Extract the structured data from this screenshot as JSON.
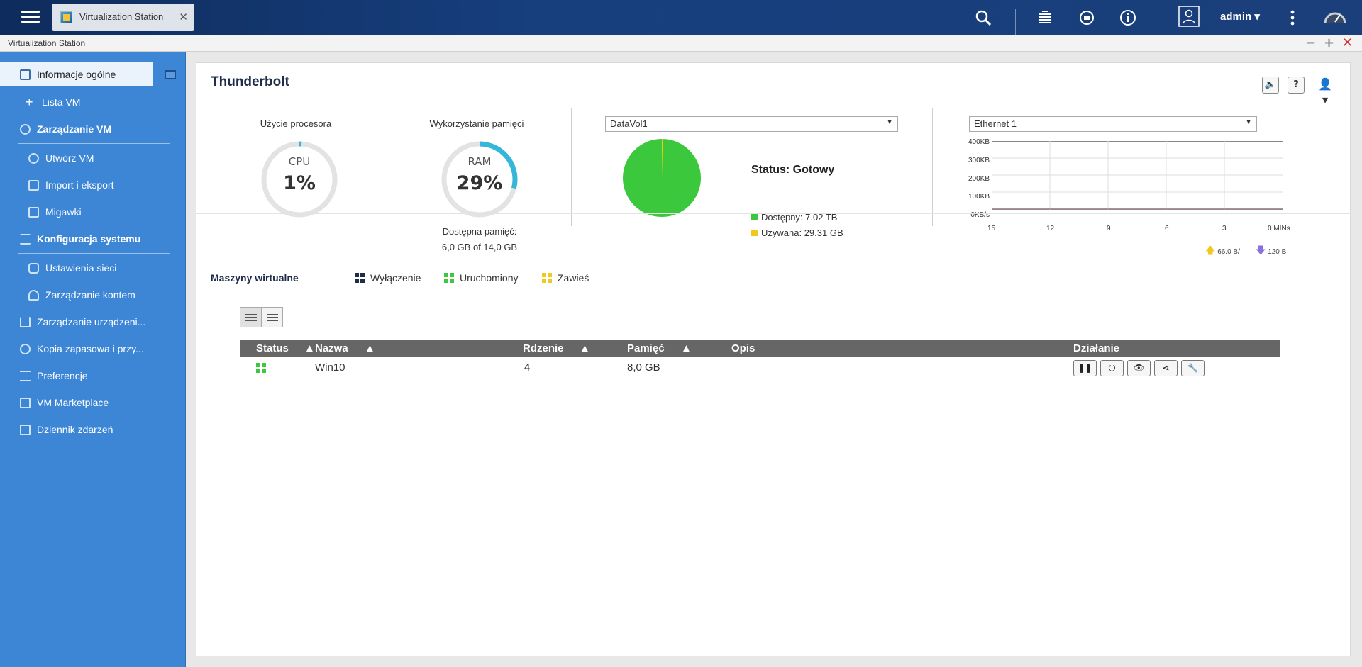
{
  "window": {
    "tab_title": "Virtualization Station",
    "title": "Virtualization Station"
  },
  "topbar": {
    "username": "admin"
  },
  "sidebar": {
    "items": [
      {
        "label": "Informacje ogólne"
      },
      {
        "label": "Lista VM"
      },
      {
        "label": "Zarządzanie VM"
      },
      {
        "label": "Utwórz VM"
      },
      {
        "label": "Import i eksport"
      },
      {
        "label": "Migawki"
      },
      {
        "label": "Konfiguracja systemu"
      },
      {
        "label": "Ustawienia sieci"
      },
      {
        "label": "Zarządzanie kontem"
      },
      {
        "label": "Zarządzanie urządzeni..."
      },
      {
        "label": "Kopia zapasowa i przy..."
      },
      {
        "label": "Preferencje"
      },
      {
        "label": "VM Marketplace"
      },
      {
        "label": "Dziennik zdarzeń"
      }
    ]
  },
  "main": {
    "title": "Thunderbolt",
    "cpu": {
      "label": "Użycie procesora",
      "name": "CPU",
      "value": "1%",
      "percent": 1
    },
    "ram": {
      "label": "Wykorzystanie pamięci",
      "name": "RAM",
      "value": "29%",
      "percent": 29,
      "available_label": "Dostępna pamięć:",
      "available_value": "6,0 GB of 14,0 GB"
    },
    "storage": {
      "volume": "DataVol1",
      "status": "Status: Gotowy",
      "available": "Dostępny: 7.02 TB",
      "used": "Używana: 29.31 GB",
      "used_fraction": 0.004,
      "color_available": "#3cc83c",
      "color_used": "#f2c81c"
    },
    "network": {
      "adapter": "Ethernet 1",
      "y_ticks": [
        "400KB",
        "300KB",
        "200KB",
        "100KB",
        "0KB/s"
      ],
      "x_ticks": [
        "15",
        "12",
        "9",
        "6",
        "3",
        "0 MINs"
      ],
      "upload": "66.0 B/",
      "download": "120 B"
    },
    "vms": {
      "heading": "Maszyny wirtualne",
      "legend": {
        "off": "Wyłączenie",
        "running": "Uruchomiony",
        "suspended": "Zawieś"
      },
      "columns": {
        "status": "Status",
        "name": "Nazwa",
        "cores": "Rdzenie",
        "memory": "Pamięć",
        "desc": "Opis",
        "actions": "Działanie"
      },
      "rows": [
        {
          "name": "Win10",
          "cores": "4",
          "memory": "8,0 GB",
          "desc": "",
          "state": "running"
        }
      ]
    }
  }
}
